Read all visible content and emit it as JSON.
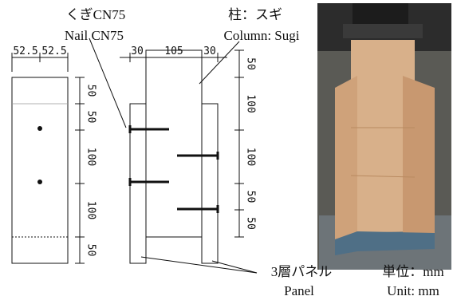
{
  "labels": {
    "nail_jp": "くぎCN75",
    "nail_en": "Nail CN75",
    "column_jp": "柱：スギ",
    "column_en": "Column: Sugi",
    "panel_jp": "3層パネル",
    "panel_en": "Panel",
    "unit_jp": "単位：mm",
    "unit_en": "Unit: mm"
  },
  "left_view": {
    "width_dims": [
      "52.5",
      "52.5"
    ],
    "height_dims": [
      "50",
      "50",
      "100",
      "100",
      "50"
    ]
  },
  "side_view": {
    "width_dims": [
      "30",
      "105",
      "30"
    ],
    "height_dims": [
      "50",
      "100",
      "100",
      "50",
      "50"
    ]
  }
}
